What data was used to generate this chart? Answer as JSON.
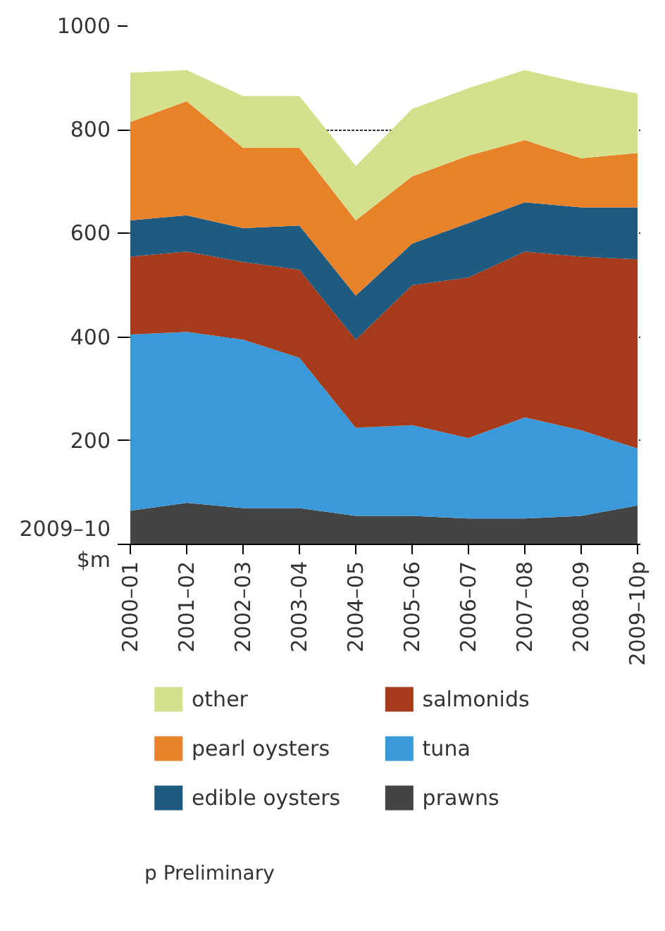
{
  "chart_data": {
    "type": "area",
    "stacked": true,
    "categories": [
      "2000–01",
      "2001–02",
      "2002–03",
      "2003–04",
      "2004–05",
      "2005–06",
      "2006–07",
      "2007–08",
      "2008–09",
      "2009–10p"
    ],
    "series": [
      {
        "name": "prawns",
        "color": "#444444",
        "values": [
          65,
          80,
          70,
          70,
          55,
          55,
          50,
          50,
          55,
          75
        ]
      },
      {
        "name": "tuna",
        "color": "#3a9ad9",
        "values": [
          340,
          330,
          325,
          290,
          170,
          175,
          155,
          195,
          165,
          110
        ]
      },
      {
        "name": "salmonids",
        "color": "#a53b1b",
        "values": [
          150,
          155,
          150,
          170,
          170,
          270,
          310,
          320,
          335,
          365
        ]
      },
      {
        "name": "edible oysters",
        "color": "#1f5a80",
        "values": [
          70,
          70,
          65,
          85,
          85,
          80,
          105,
          95,
          95,
          100
        ]
      },
      {
        "name": "pearl oysters",
        "color": "#e8822a",
        "values": [
          190,
          220,
          155,
          150,
          145,
          130,
          130,
          120,
          95,
          105
        ]
      },
      {
        "name": "other",
        "color": "#d4e08c",
        "values": [
          95,
          60,
          100,
          100,
          105,
          130,
          130,
          135,
          145,
          115
        ]
      }
    ],
    "ylim": [
      0,
      1000
    ],
    "yticks": [
      {
        "value": 0,
        "label": "2009–10 $m"
      },
      200,
      400,
      600,
      800,
      1000
    ],
    "grid": "y",
    "legend": "bottom",
    "annotations": [
      "p Preliminary"
    ]
  }
}
